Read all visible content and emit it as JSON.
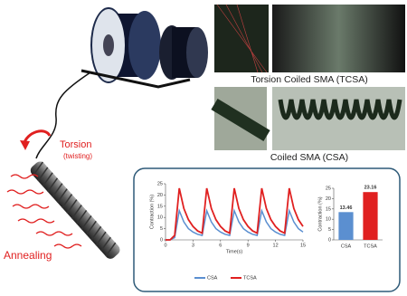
{
  "labels": {
    "tcsa_caption": "Torsion Coiled SMA (TCSA)",
    "csa_caption": "Coiled SMA (CSA)",
    "torsion": "Torsion",
    "twisting": "(twisting)",
    "annealing": "Annealing"
  },
  "chart_data": [
    {
      "type": "line",
      "x_label": "Time(s)",
      "y_label": "Contraction (%)",
      "x": [
        0,
        0.5,
        1,
        1.5,
        2,
        2.5,
        3,
        3.5,
        4,
        4.5,
        5,
        5.5,
        6,
        6.5,
        7,
        7.5,
        8,
        8.5,
        9,
        9.5,
        10,
        10.5,
        11,
        11.5,
        12,
        12.5,
        13,
        13.5,
        14,
        14.5,
        15
      ],
      "series": [
        {
          "name": "CSA",
          "color": "#5b8fd0",
          "values": [
            0,
            0,
            1,
            13,
            8,
            5,
            3.5,
            2.5,
            2,
            13,
            8,
            5,
            3.5,
            2.5,
            2,
            13,
            8,
            5,
            3.5,
            2.5,
            2,
            13,
            8,
            5,
            3.5,
            2.5,
            2,
            13,
            8,
            5,
            3.5
          ]
        },
        {
          "name": "TCSA",
          "color": "#e02020",
          "values": [
            0,
            0,
            2,
            23,
            14,
            9,
            6,
            4,
            3,
            23,
            14,
            9,
            6,
            4,
            3,
            23,
            14,
            9,
            6,
            4,
            3,
            23,
            14,
            9,
            6,
            4,
            3,
            23,
            14,
            9,
            6
          ]
        }
      ],
      "xlim": [
        0,
        15
      ],
      "xticks": [
        0,
        3,
        6,
        9,
        12,
        15
      ],
      "ylim": [
        0,
        25
      ],
      "yticks": [
        0,
        5,
        10,
        15,
        20,
        25
      ],
      "legend": "bottom"
    },
    {
      "type": "bar",
      "y_label": "Contraction (%)",
      "categories": [
        "CSA",
        "TCSA"
      ],
      "values": [
        13.46,
        23.16
      ],
      "colors": [
        "#5b8fd0",
        "#e02020"
      ],
      "ylim": [
        0,
        25
      ],
      "yticks": [
        0,
        5,
        10,
        15,
        20,
        25
      ]
    }
  ]
}
